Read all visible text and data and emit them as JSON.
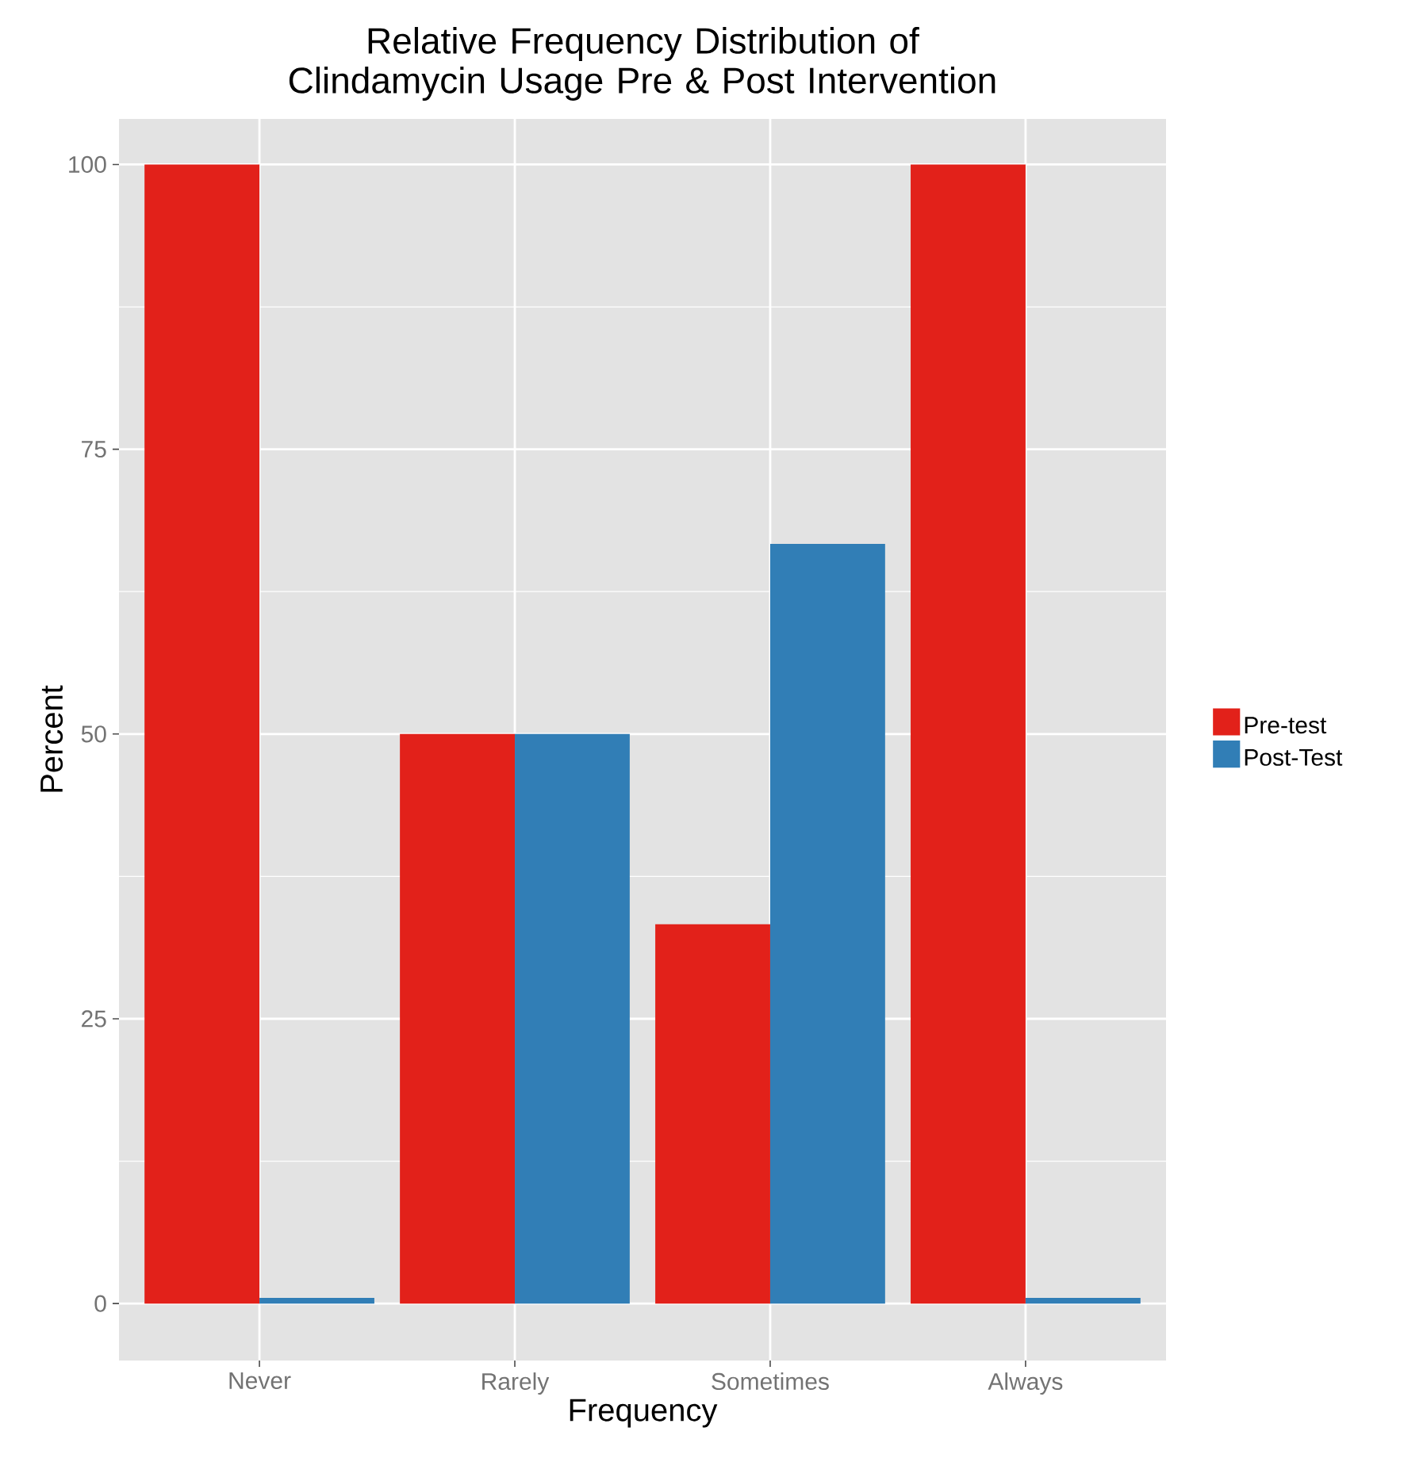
{
  "chart_data": {
    "type": "bar",
    "title": "Relative Frequency Distribution of Clindamycin Usage Pre & Post Intervention",
    "xlabel": "Frequency",
    "ylabel": "Percent",
    "categories": [
      "Never",
      "Rarely",
      "Sometimes",
      "Always"
    ],
    "series": [
      {
        "name": "Pre-test",
        "color": "#e2211a",
        "values": [
          100,
          50,
          33.3,
          100
        ]
      },
      {
        "name": "Post-Test",
        "color": "#317eb6",
        "values": [
          0.5,
          50,
          66.7,
          0.5
        ]
      }
    ],
    "ylim": [
      -5,
      104
    ],
    "yticks": [
      0,
      25,
      50,
      75,
      100
    ],
    "grid": true,
    "legend": "right"
  }
}
